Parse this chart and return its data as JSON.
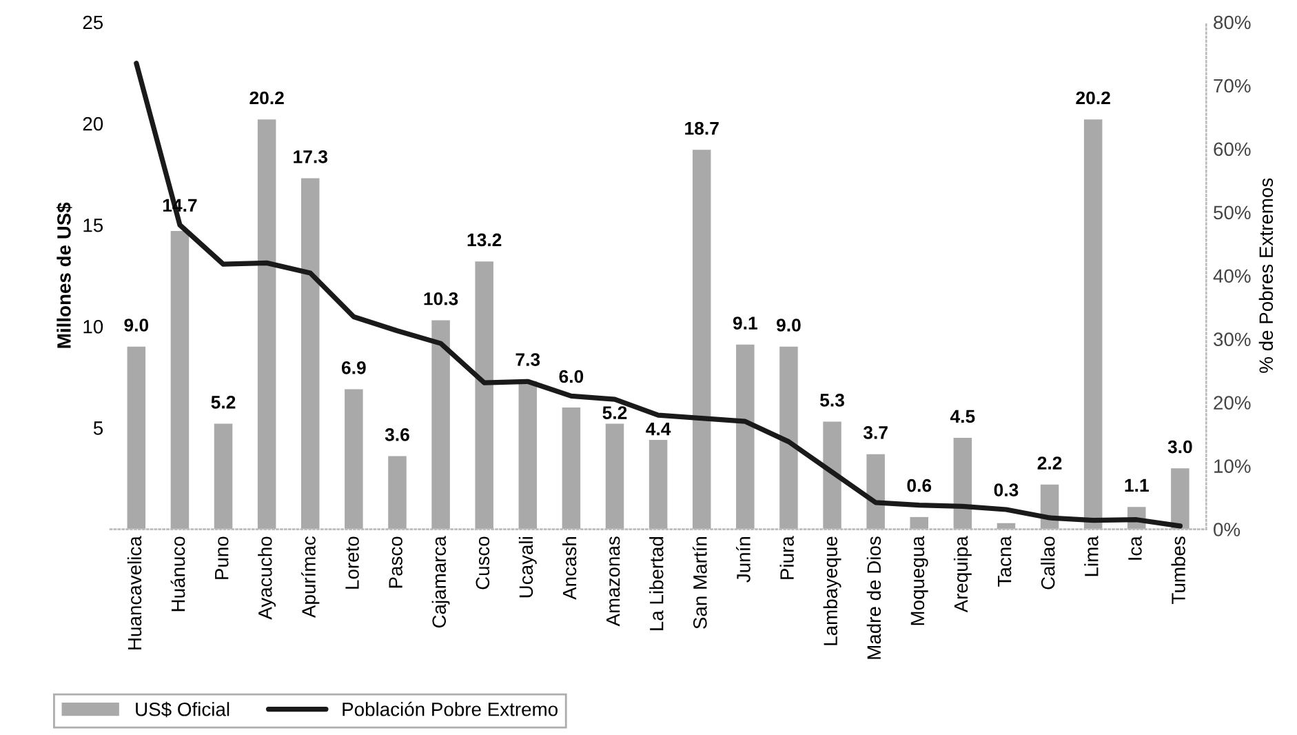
{
  "chart_data": {
    "type": "bar",
    "ylabel": "Millones de US$",
    "y2label": "% de Pobres Extremos",
    "categories": [
      "Huancavelica",
      "Huánuco",
      "Puno",
      "Ayacucho",
      "Apurímac",
      "Loreto",
      "Pasco",
      "Cajamarca",
      "Cusco",
      "Ucayali",
      "Ancash",
      "Amazonas",
      "La Libertad",
      "San Martín",
      "Junín",
      "Piura",
      "Lambayeque",
      "Madre de Dios",
      "Moquegua",
      "Arequipa",
      "Tacna",
      "Callao",
      "Lima",
      "Ica",
      "Tumbes"
    ],
    "series": [
      {
        "name": "US$ Oficial",
        "color": "#a9a9a9",
        "values": [
          9.0,
          14.7,
          5.2,
          20.2,
          17.3,
          6.9,
          3.6,
          10.3,
          13.2,
          7.3,
          6.0,
          5.2,
          4.4,
          18.7,
          9.1,
          9.0,
          5.3,
          3.7,
          0.6,
          4.5,
          0.3,
          2.2,
          20.2,
          1.1,
          3.0
        ],
        "value_labels": [
          "9.0",
          "14.7",
          "5.2",
          "20.2",
          "17.3",
          "6.9",
          "3.6",
          "10.3",
          "13.2",
          "7.3",
          "6.0",
          "5.2",
          "4.4",
          "18.7",
          "9.1",
          "9.0",
          "5.3",
          "3.7",
          "0.6",
          "4.5",
          "0.3",
          "2.2",
          "20.2",
          "1.1",
          "3.0"
        ]
      },
      {
        "name": "Población Pobre Extremo",
        "type": "line",
        "axis": "y2",
        "color": "#1a1a1a",
        "values": [
          73.5,
          48,
          41.8,
          42,
          40.4,
          33.5,
          31.3,
          29.3,
          23.1,
          23.3,
          21,
          20.5,
          18,
          17.5,
          17,
          13.8,
          9,
          4.2,
          3.8,
          3.6,
          3.1,
          1.8,
          1.4,
          1.5,
          0.5
        ]
      }
    ],
    "ylim": [
      0,
      25
    ],
    "yticks": [
      5,
      10,
      15,
      20,
      25
    ],
    "y2lim": [
      0,
      80
    ],
    "y2ticks": [
      {
        "value": 0,
        "label": "0%"
      },
      {
        "value": 10,
        "label": "10%"
      },
      {
        "value": 20,
        "label": "20%"
      },
      {
        "value": 30,
        "label": "30%"
      },
      {
        "value": 40,
        "label": "40%"
      },
      {
        "value": 50,
        "label": "50%"
      },
      {
        "value": 60,
        "label": "60%"
      },
      {
        "value": 70,
        "label": "70%"
      },
      {
        "value": 80,
        "label": "80%"
      }
    ],
    "grid": false,
    "legend": "bottom left",
    "marker": "none",
    "line_style": "solid"
  }
}
